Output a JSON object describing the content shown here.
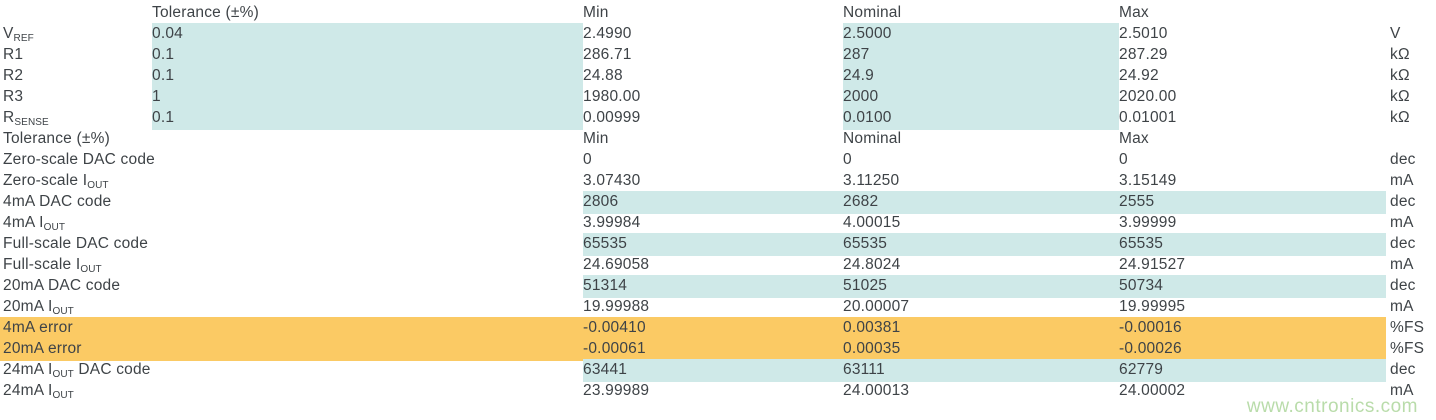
{
  "colors": {
    "cell_highlight_cyan": "#cfe9e8",
    "cell_highlight_orange": "#fbca64",
    "text": "#3e4347",
    "watermark_green": "#b9dcaa"
  },
  "watermark": "www.cntronics.com",
  "table": {
    "header1": {
      "tolerance": "Tolerance (±%)",
      "min": "Min",
      "nominal": "Nominal",
      "max": "Max"
    },
    "header2": {
      "label": "Tolerance (±%)",
      "min": "Min",
      "nominal": "Nominal",
      "max": "Max"
    },
    "section1": [
      {
        "label_pre": "V",
        "label_sub": "REF",
        "tolerance": "0.04",
        "min": "2.4990",
        "nominal": "2.5000",
        "max": "2.5010",
        "unit": "V"
      },
      {
        "label_pre": "R1",
        "label_sub": "",
        "tolerance": "0.1",
        "min": "286.71",
        "nominal": "287",
        "max": "287.29",
        "unit": "kΩ"
      },
      {
        "label_pre": "R2",
        "label_sub": "",
        "tolerance": "0.1",
        "min": "24.88",
        "nominal": "24.9",
        "max": "24.92",
        "unit": "kΩ"
      },
      {
        "label_pre": "R3",
        "label_sub": "",
        "tolerance": "1",
        "min": "1980.00",
        "nominal": "2000",
        "max": "2020.00",
        "unit": "kΩ"
      },
      {
        "label_pre": "R",
        "label_sub": "SENSE",
        "tolerance": "0.1",
        "min": "0.00999",
        "nominal": "0.0100",
        "max": "0.01001",
        "unit": "kΩ"
      }
    ],
    "section2": [
      {
        "label_pre": "Zero-scale DAC code",
        "label_sub": "",
        "label_post": "",
        "min": "0",
        "nominal": "0",
        "max": "0",
        "unit": "dec",
        "highlight": "none"
      },
      {
        "label_pre": "Zero-scale I",
        "label_sub": "OUT",
        "label_post": "",
        "min": "3.07430",
        "nominal": "3.11250",
        "max": "3.15149",
        "unit": "mA",
        "highlight": "none"
      },
      {
        "label_pre": "4mA DAC code",
        "label_sub": "",
        "label_post": "",
        "min": "2806",
        "nominal": "2682",
        "max": "2555",
        "unit": "dec",
        "highlight": "cyan"
      },
      {
        "label_pre": "4mA I",
        "label_sub": "OUT",
        "label_post": "",
        "min": "3.99984",
        "nominal": "4.00015",
        "max": "3.99999",
        "unit": "mA",
        "highlight": "none"
      },
      {
        "label_pre": "Full-scale DAC code",
        "label_sub": "",
        "label_post": "",
        "min": "65535",
        "nominal": "65535",
        "max": "65535",
        "unit": "dec",
        "highlight": "cyan"
      },
      {
        "label_pre": "Full-scale I",
        "label_sub": "OUT",
        "label_post": "",
        "min": "24.69058",
        "nominal": "24.8024",
        "max": "24.91527",
        "unit": "mA",
        "highlight": "none"
      },
      {
        "label_pre": "20mA DAC code",
        "label_sub": "",
        "label_post": "",
        "min": "51314",
        "nominal": "51025",
        "max": "50734",
        "unit": "dec",
        "highlight": "cyan"
      },
      {
        "label_pre": "20mA I",
        "label_sub": "OUT",
        "label_post": "",
        "min": "19.99988",
        "nominal": "20.00007",
        "max": "19.99995",
        "unit": "mA",
        "highlight": "none"
      },
      {
        "label_pre": "4mA error",
        "label_sub": "",
        "label_post": "",
        "min": "-0.00410",
        "nominal": "0.00381",
        "max": "-0.00016",
        "unit": "%FS",
        "highlight": "orange"
      },
      {
        "label_pre": "20mA error",
        "label_sub": "",
        "label_post": "",
        "min": "-0.00061",
        "nominal": "0.00035",
        "max": "-0.00026",
        "unit": "%FS",
        "highlight": "orange"
      },
      {
        "label_pre": "24mA I",
        "label_sub": "OUT",
        "label_post": " DAC code",
        "min": "63441",
        "nominal": "63111",
        "max": "62779",
        "unit": "dec",
        "highlight": "cyan"
      },
      {
        "label_pre": "24mA I",
        "label_sub": "OUT",
        "label_post": "",
        "min": "23.99989",
        "nominal": "24.00013",
        "max": "24.00002",
        "unit": "mA",
        "highlight": "none"
      }
    ]
  }
}
